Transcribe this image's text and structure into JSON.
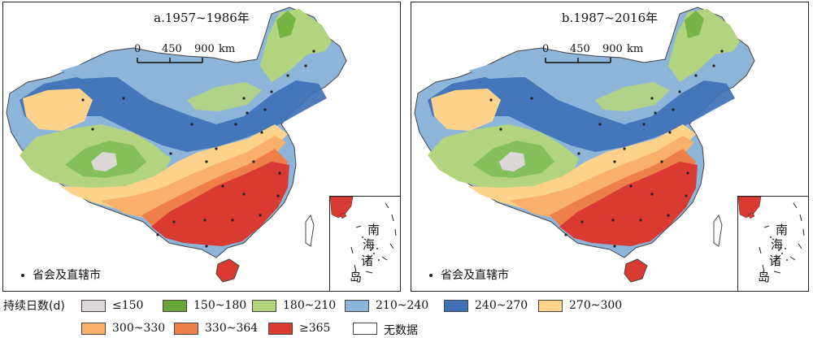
{
  "panels": [
    {
      "id": "a",
      "title": "a.1957~1986年",
      "scale": {
        "ticks": [
          "0",
          "450",
          "900"
        ],
        "unit": "km"
      },
      "inset_label": [
        "南",
        "海",
        "诸",
        "岛"
      ],
      "capital_legend": "省会及直辖市",
      "north_green": "#76b545",
      "west_green": "#84bf5a",
      "has_white_patch": true
    },
    {
      "id": "b",
      "title": "b.1987~2016年",
      "scale": {
        "ticks": [
          "0",
          "450",
          "900"
        ],
        "unit": "km"
      },
      "inset_label": [
        "南",
        "海",
        "诸",
        "岛"
      ],
      "capital_legend": "省会及直辖市",
      "north_green": "#76b545",
      "west_green": "#84bf5a",
      "has_white_patch": true
    }
  ],
  "legend": {
    "title": "持续日数(d)",
    "items": [
      {
        "label": "≤150",
        "color": "#dcd8d8"
      },
      {
        "label": "150~180",
        "color": "#6aa53a"
      },
      {
        "label": "180~210",
        "color": "#b2d47f"
      },
      {
        "label": "210~240",
        "color": "#8db5da"
      },
      {
        "label": "240~270",
        "color": "#3f71b7"
      },
      {
        "label": "270~300",
        "color": "#fdd38b"
      },
      {
        "label": "300~330",
        "color": "#f8b06a"
      },
      {
        "label": "330~364",
        "color": "#ee7e4a"
      },
      {
        "label": "≥365",
        "color": "#d93a32"
      },
      {
        "label": "无数据",
        "color": "#ffffff"
      }
    ]
  }
}
